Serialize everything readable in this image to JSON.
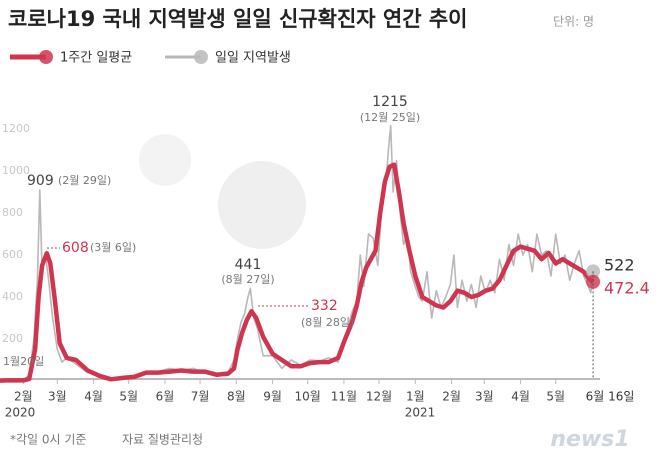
{
  "chart_data": {
    "type": "line",
    "title": "코로나19 국내 지역발생 일일 신규확진자 연간 추이",
    "unit": "단위: 명",
    "series": [
      {
        "name": "1주간 일평균",
        "color": "#d0354f",
        "x": [
          25,
          30,
          45,
          50,
          55,
          58,
          61,
          65,
          68,
          72,
          76,
          82,
          90,
          100,
          110,
          120,
          130,
          140,
          150,
          160,
          170,
          180,
          190,
          200,
          210,
          220,
          225,
          228,
          232,
          236,
          240,
          244,
          250,
          258,
          266,
          274,
          282,
          290,
          298,
          306,
          314,
          320,
          326,
          330,
          334,
          338,
          342,
          346,
          350,
          354,
          358,
          362,
          366,
          370,
          375,
          380,
          386,
          392,
          398,
          404,
          410,
          416,
          422,
          428,
          434,
          440,
          446,
          452,
          458,
          464,
          470,
          476,
          482,
          488,
          494,
          500,
          506,
          512,
          518,
          524,
          528,
          532
        ],
        "values": [
          1,
          3,
          3,
          10,
          150,
          400,
          550,
          608,
          560,
          380,
          180,
          110,
          100,
          50,
          25,
          8,
          15,
          20,
          40,
          40,
          45,
          50,
          45,
          45,
          30,
          35,
          60,
          150,
          230,
          290,
          332,
          300,
          210,
          130,
          100,
          70,
          70,
          85,
          90,
          90,
          110,
          200,
          280,
          360,
          470,
          540,
          580,
          620,
          800,
          950,
          1020,
          1030,
          900,
          750,
          620,
          500,
          400,
          380,
          360,
          350,
          380,
          430,
          420,
          400,
          410,
          430,
          440,
          480,
          550,
          620,
          640,
          630,
          620,
          580,
          610,
          560,
          580,
          560,
          540,
          520,
          490,
          472.4
        ]
      },
      {
        "name": "일일 지역발생",
        "color": "#b8b8b8",
        "x": [
          25,
          30,
          45,
          50,
          54,
          57,
          59,
          61,
          64,
          67,
          70,
          74,
          78,
          82,
          90,
          100,
          110,
          120,
          130,
          140,
          150,
          160,
          170,
          180,
          190,
          200,
          210,
          220,
          225,
          228,
          231,
          234,
          237,
          239,
          242,
          245,
          250,
          258,
          266,
          274,
          282,
          290,
          298,
          306,
          314,
          320,
          326,
          330,
          333,
          336,
          340,
          344,
          348,
          352,
          355,
          357,
          359,
          361,
          364,
          367,
          370,
          373,
          376,
          380,
          383,
          386,
          390,
          394,
          398,
          402,
          406,
          410,
          413,
          416,
          420,
          424,
          428,
          432,
          436,
          440,
          444,
          448,
          452,
          456,
          460,
          464,
          468,
          472,
          476,
          480,
          484,
          488,
          492,
          496,
          500,
          504,
          508,
          512,
          516,
          520,
          524,
          528,
          530,
          532
        ],
        "values": [
          1,
          3,
          2,
          30,
          200,
          480,
          909,
          520,
          600,
          460,
          300,
          150,
          90,
          110,
          80,
          40,
          30,
          10,
          20,
          25,
          40,
          45,
          60,
          50,
          60,
          40,
          30,
          40,
          100,
          200,
          280,
          320,
          400,
          441,
          300,
          250,
          120,
          120,
          60,
          100,
          75,
          100,
          95,
          110,
          90,
          200,
          330,
          380,
          600,
          450,
          700,
          680,
          550,
          880,
          950,
          1100,
          1215,
          900,
          1050,
          800,
          650,
          700,
          520,
          450,
          400,
          380,
          520,
          300,
          430,
          350,
          400,
          460,
          600,
          350,
          480,
          380,
          460,
          350,
          500,
          420,
          480,
          420,
          580,
          480,
          650,
          550,
          700,
          600,
          650,
          520,
          700,
          600,
          620,
          500,
          700,
          560,
          600,
          480,
          560,
          620,
          500,
          450,
          420,
          522
        ]
      }
    ],
    "xlim": [
      25,
      555
    ],
    "xticks": [
      {
        "value": 45,
        "label": "2월"
      },
      {
        "value": 74,
        "label": "3월"
      },
      {
        "value": 105,
        "label": "4월"
      },
      {
        "value": 135,
        "label": "5월"
      },
      {
        "value": 166,
        "label": "6월"
      },
      {
        "value": 196,
        "label": "7월"
      },
      {
        "value": 227,
        "label": "8월"
      },
      {
        "value": 258,
        "label": "9월"
      },
      {
        "value": 288,
        "label": "10월"
      },
      {
        "value": 319,
        "label": "11월"
      },
      {
        "value": 349,
        "label": "12월"
      },
      {
        "value": 380,
        "label": "1월"
      },
      {
        "value": 411,
        "label": "2월"
      },
      {
        "value": 439,
        "label": "3월"
      },
      {
        "value": 470,
        "label": "4월"
      },
      {
        "value": 500,
        "label": "5월"
      }
    ],
    "years": [
      "2020",
      "2021"
    ],
    "ylim": [
      0,
      1300
    ],
    "yticks": [
      200,
      400,
      600,
      800,
      1000,
      1200
    ],
    "grid": false,
    "annotations": [
      "(2월 29일)",
      "(3월 6일)",
      "(8월 27일)",
      "(8월 28일)",
      "(12월 25일)",
      "1월20일",
      "6월 16일"
    ],
    "footnote": "*각일 0시 기준",
    "source": "자료 질병관리청",
    "logo": "news1"
  }
}
